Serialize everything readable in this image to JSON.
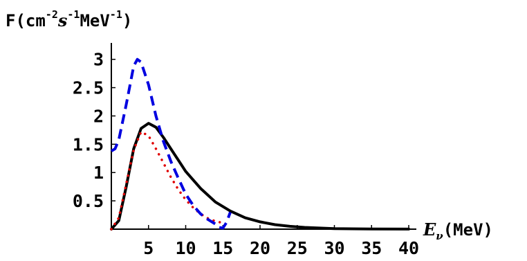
{
  "chart_data": {
    "type": "line",
    "ylabel": {
      "prefix": "F(cm",
      "exp1": "-2",
      "mid1": "s",
      "exp2": "-1",
      "mid2": "MeV",
      "exp3": "-1",
      "suffix": ")"
    },
    "xlabel": {
      "symbol": "E",
      "subscript": "ν",
      "unit": "(MeV)"
    },
    "x_ticks": [
      "5",
      "10",
      "15",
      "20",
      "25",
      "30",
      "35",
      "40"
    ],
    "x_tick_values": [
      5,
      10,
      15,
      20,
      25,
      30,
      35,
      40
    ],
    "y_ticks": [
      "0.5",
      "1",
      "1.5",
      "2",
      "2.5",
      "3"
    ],
    "y_tick_values": [
      0.5,
      1,
      1.5,
      2,
      2.5,
      3
    ],
    "xlim": [
      0,
      40
    ],
    "ylim": [
      0,
      3.4
    ],
    "grid": false,
    "legend": "none",
    "series": [
      {
        "style": "solid",
        "color": "#000000",
        "x": [
          0,
          1,
          2,
          3,
          4,
          5,
          6,
          7,
          8,
          9,
          10,
          12,
          14,
          16,
          18,
          20,
          22,
          24,
          26,
          28,
          30,
          35,
          40
        ],
        "y": [
          0,
          0.15,
          0.75,
          1.42,
          1.78,
          1.87,
          1.8,
          1.62,
          1.42,
          1.22,
          1.02,
          0.72,
          0.48,
          0.32,
          0.2,
          0.13,
          0.08,
          0.05,
          0.03,
          0.02,
          0.01,
          0.003,
          0.001
        ]
      },
      {
        "style": "dotted",
        "color": "#e00000",
        "x": [
          0,
          1,
          2,
          3,
          4,
          5,
          6,
          7,
          8,
          9,
          10,
          11,
          12,
          13,
          14,
          15
        ],
        "y": [
          0,
          0.2,
          0.8,
          1.4,
          1.72,
          1.65,
          1.42,
          1.17,
          0.92,
          0.7,
          0.52,
          0.38,
          0.27,
          0.19,
          0.14,
          0.11
        ]
      },
      {
        "style": "dashed",
        "color": "#0000e0",
        "x": [
          0,
          0.5,
          1,
          2,
          3,
          3.5,
          4,
          5,
          6,
          7,
          8,
          9,
          10,
          11,
          12,
          13,
          14,
          14.5,
          15,
          15.5,
          16
        ],
        "y": [
          1.38,
          1.42,
          1.58,
          2.2,
          2.88,
          3.0,
          2.95,
          2.55,
          2.0,
          1.55,
          1.2,
          0.9,
          0.62,
          0.42,
          0.27,
          0.17,
          0.09,
          0.03,
          0.02,
          0.12,
          0.3
        ]
      }
    ]
  }
}
